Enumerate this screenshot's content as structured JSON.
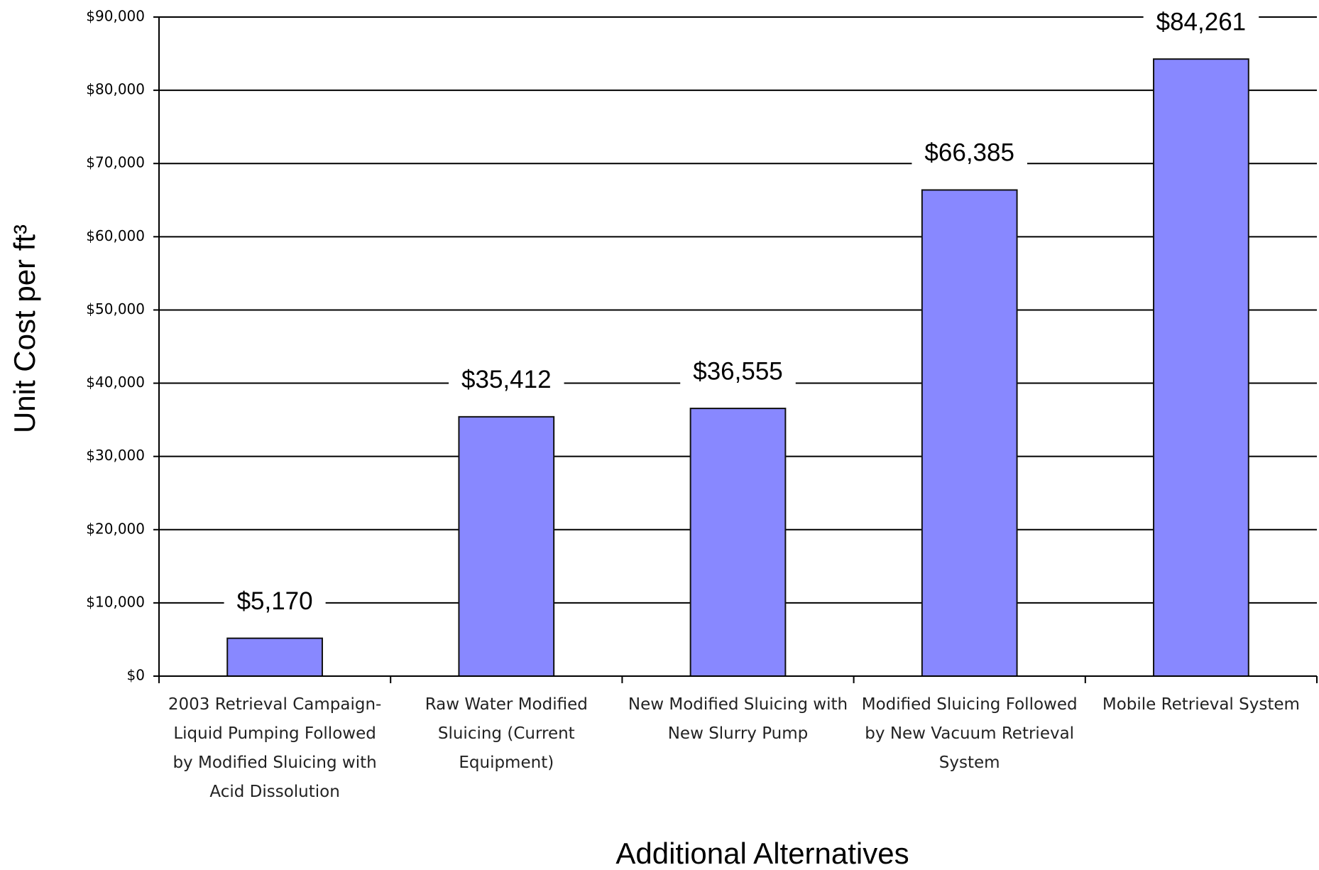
{
  "chart_data": {
    "type": "bar",
    "x_label": "Additional Alternatives",
    "y_label": "Unit Cost per ft³",
    "categories": [
      "2003 Retrieval Campaign-Liquid Pumping Followed by Modified Sluicing with Acid Dissolution",
      "Raw Water Modified Sluicing (Current Equipment)",
      "New Modified Sluicing with New Slurry Pump",
      "Modified Sluicing Followed by New Vacuum Retrieval System",
      "Mobile Retrieval System"
    ],
    "values": [
      5170,
      35412,
      36555,
      66385,
      84261
    ],
    "value_labels": [
      "$5,170",
      "$35,412",
      "$36,555",
      "$66,385",
      "$84,261"
    ],
    "color": "#8888ff",
    "ylim": [
      0,
      90000
    ],
    "yticks": [
      {
        "value": 0,
        "label": "$0"
      },
      {
        "value": 10000,
        "label": "$10,000"
      },
      {
        "value": 20000,
        "label": "$20,000"
      },
      {
        "value": 30000,
        "label": "$30,000"
      },
      {
        "value": 40000,
        "label": "$40,000"
      },
      {
        "value": 50000,
        "label": "$50,000"
      },
      {
        "value": 60000,
        "label": "$60,000"
      },
      {
        "value": 70000,
        "label": "$70,000"
      },
      {
        "value": 80000,
        "label": "$80,000"
      },
      {
        "value": 90000,
        "label": "$90,000"
      }
    ],
    "grid": true
  }
}
